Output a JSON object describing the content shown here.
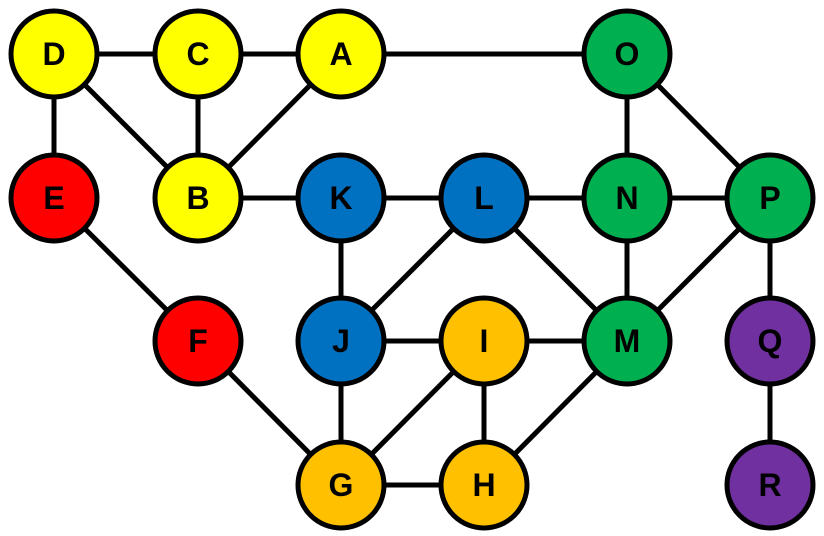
{
  "colors": {
    "yellow": "#ffff00",
    "red": "#ff0000",
    "blue": "#0070c0",
    "green": "#00b050",
    "orange": "#ffc000",
    "purple": "#7030a0",
    "outline": "#000000"
  },
  "nodes": [
    {
      "id": "D",
      "label": "D",
      "color": "yellow"
    },
    {
      "id": "C",
      "label": "C",
      "color": "yellow"
    },
    {
      "id": "A",
      "label": "A",
      "color": "yellow"
    },
    {
      "id": "O",
      "label": "O",
      "color": "green"
    },
    {
      "id": "E",
      "label": "E",
      "color": "red"
    },
    {
      "id": "B",
      "label": "B",
      "color": "yellow"
    },
    {
      "id": "K",
      "label": "K",
      "color": "blue"
    },
    {
      "id": "L",
      "label": "L",
      "color": "blue"
    },
    {
      "id": "N",
      "label": "N",
      "color": "green"
    },
    {
      "id": "P",
      "label": "P",
      "color": "green"
    },
    {
      "id": "F",
      "label": "F",
      "color": "red"
    },
    {
      "id": "J",
      "label": "J",
      "color": "blue"
    },
    {
      "id": "I",
      "label": "I",
      "color": "orange"
    },
    {
      "id": "M",
      "label": "M",
      "color": "green"
    },
    {
      "id": "Q",
      "label": "Q",
      "color": "purple"
    },
    {
      "id": "G",
      "label": "G",
      "color": "orange"
    },
    {
      "id": "H",
      "label": "H",
      "color": "orange"
    },
    {
      "id": "R",
      "label": "R",
      "color": "purple"
    }
  ],
  "edges": [
    [
      "D",
      "C"
    ],
    [
      "C",
      "A"
    ],
    [
      "A",
      "O"
    ],
    [
      "D",
      "E"
    ],
    [
      "D",
      "B"
    ],
    [
      "C",
      "B"
    ],
    [
      "A",
      "B"
    ],
    [
      "O",
      "N"
    ],
    [
      "O",
      "P"
    ],
    [
      "E",
      "F"
    ],
    [
      "B",
      "K"
    ],
    [
      "K",
      "L"
    ],
    [
      "L",
      "N"
    ],
    [
      "N",
      "P"
    ],
    [
      "K",
      "J"
    ],
    [
      "L",
      "J"
    ],
    [
      "L",
      "M"
    ],
    [
      "N",
      "M"
    ],
    [
      "P",
      "M"
    ],
    [
      "P",
      "Q"
    ],
    [
      "F",
      "G"
    ],
    [
      "J",
      "I"
    ],
    [
      "I",
      "M"
    ],
    [
      "J",
      "G"
    ],
    [
      "I",
      "G"
    ],
    [
      "I",
      "H"
    ],
    [
      "M",
      "H"
    ],
    [
      "G",
      "H"
    ],
    [
      "Q",
      "R"
    ]
  ]
}
